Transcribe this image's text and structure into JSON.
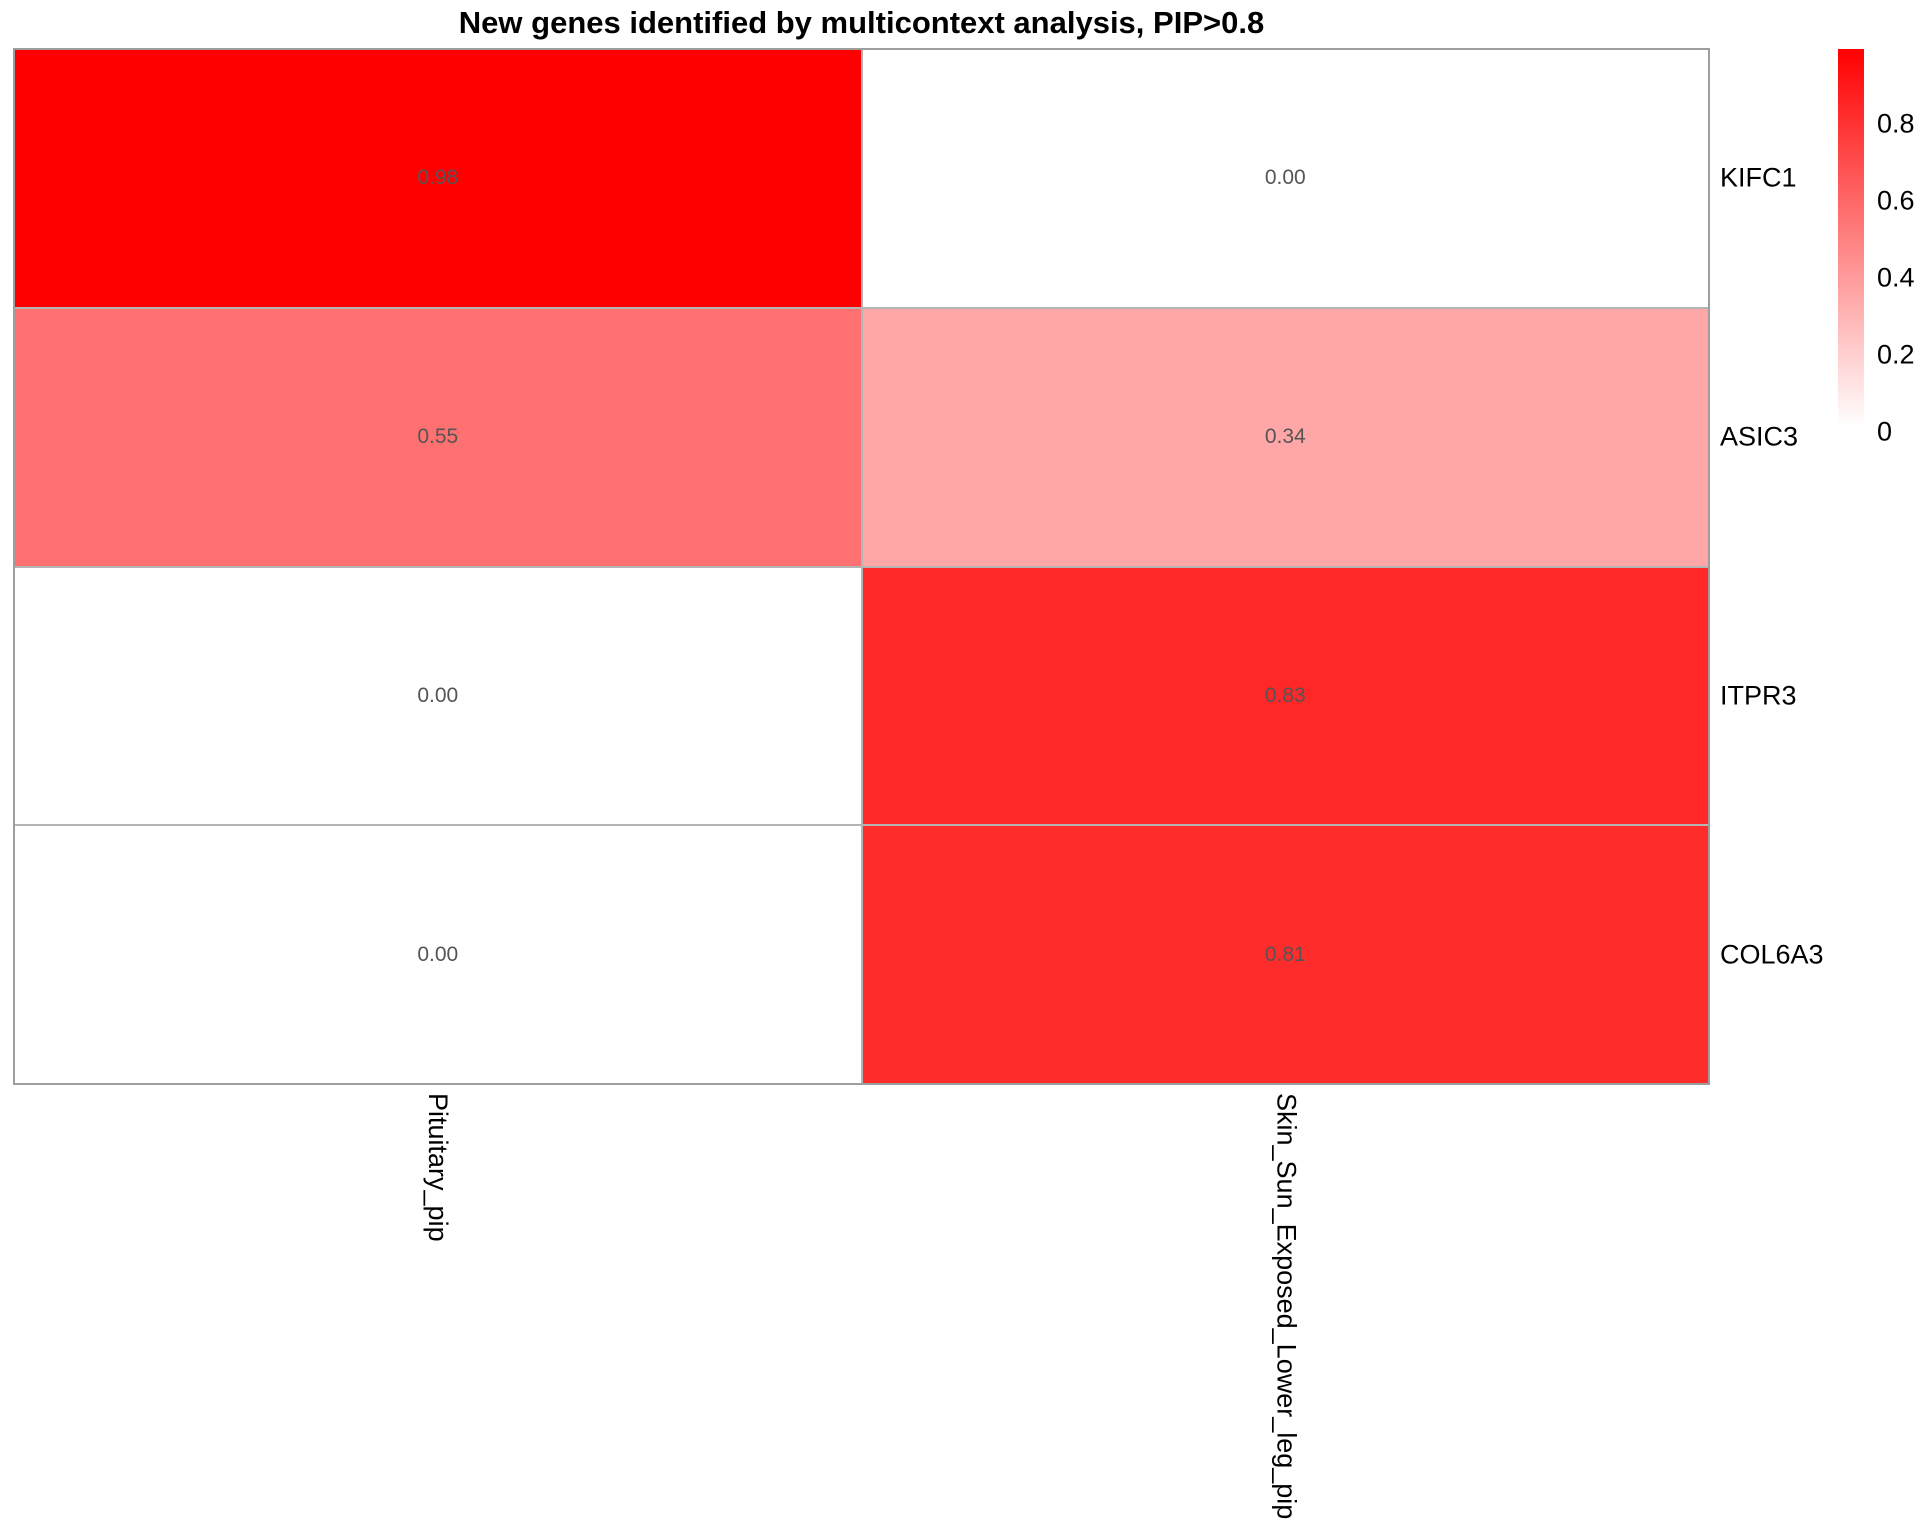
{
  "chart_data": {
    "type": "heatmap",
    "title": "New genes identified by multicontext analysis, PIP>0.8",
    "rows": [
      "KIFC1",
      "ASIC3",
      "ITPR3",
      "COL6A3"
    ],
    "columns": [
      "Pituitary_pip",
      "Skin_Sun_Exposed_Lower_leg_pip"
    ],
    "values": [
      [
        0.98,
        0.0
      ],
      [
        0.55,
        0.34
      ],
      [
        0.0,
        0.83
      ],
      [
        0.0,
        0.81
      ]
    ],
    "value_decimals": 2,
    "colorscale": {
      "min": 0,
      "max": 0.98,
      "min_color": "#FFFFFF",
      "max_color": "#FF0000"
    },
    "legend": {
      "position": "right",
      "ticks": [
        {
          "label": "0.8",
          "value": 0.8
        },
        {
          "label": "0.6",
          "value": 0.6
        },
        {
          "label": "0.4",
          "value": 0.4
        },
        {
          "label": "0.2",
          "value": 0.2
        },
        {
          "label": "0",
          "value": 0.0
        }
      ]
    },
    "style": {
      "number_color": "#555555",
      "grid_color": "#9E9E9E",
      "label_color": "#000000"
    },
    "layout": {
      "grid_on": false,
      "row_labels_side": "right",
      "col_labels_rotation_deg": 90
    }
  }
}
